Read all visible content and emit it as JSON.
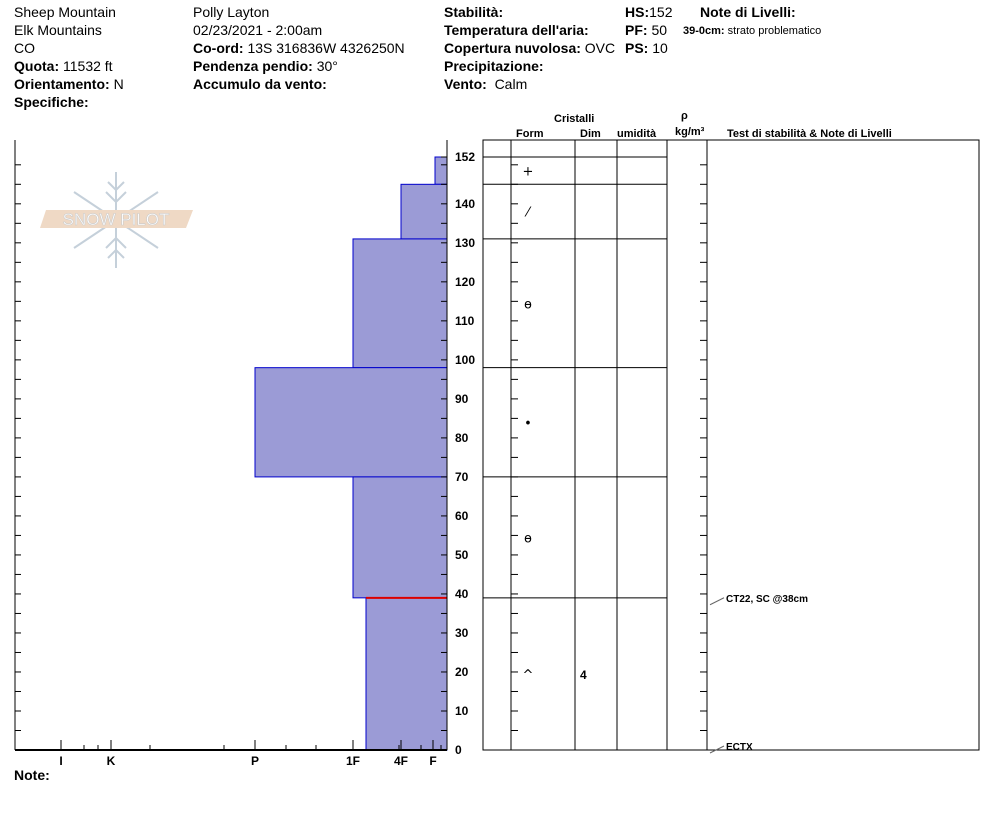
{
  "header": {
    "location": "Sheep Mountain",
    "range": "Elk Mountains",
    "state": "CO",
    "elevation_label": "Quota:",
    "elevation": "11532 ft",
    "aspect_label": "Orientamento:",
    "aspect": "N",
    "specifics_label": "Specifiche:",
    "observer": "Polly Layton",
    "datetime": "02/23/2021 - 2:00am",
    "coord_label": "Co-ord:",
    "coord": "13S 316836W 4326250N",
    "slope_label": "Pendenza pendio:",
    "slope": "30°",
    "wind_loading_label": "Accumulo da vento:",
    "stability_label": "Stabilità:",
    "air_temp_label": "Temperatura dell'aria:",
    "sky_label": "Copertura nuvolosa:",
    "sky": "OVC",
    "precip_label": "Precipitazione:",
    "wind_label": "Vento:",
    "wind": "Calm",
    "hs_label": "HS:",
    "hs": "152",
    "pf_label": "PF:",
    "pf": "50",
    "ps_label": "PS:",
    "ps": "10",
    "layer_notes_label": "Note di Livelli:",
    "layer_note_range": "39-0cm:",
    "layer_note_text": "strato problematico"
  },
  "logo": {
    "text": "SNOW PILOT"
  },
  "note_label": "Note:",
  "table_headers": {
    "crystals": "Cristalli",
    "form": "Form",
    "size": "Dim",
    "moisture": "umidità",
    "rho": "ρ",
    "density_unit": "kg/m³",
    "tests": "Test di stabilità & Note di Livelli"
  },
  "stability_tests": [
    {
      "label": "CT22, SC @38cm",
      "depth_cm": 38
    },
    {
      "label": "ECTX",
      "depth_cm": 0
    }
  ],
  "colors": {
    "layer_fill": "#9b9bd6",
    "layer_stroke": "#0000cc",
    "problem_layer": "#dd0000"
  },
  "chart_data": {
    "type": "bar",
    "title": "",
    "xlabel": "",
    "ylabel": "",
    "ylim": [
      0,
      152
    ],
    "y_ticks": [
      "0",
      "10",
      "20",
      "30",
      "40",
      "50",
      "60",
      "70",
      "80",
      "90",
      "100",
      "110",
      "120",
      "130",
      "140",
      "152"
    ],
    "hardness_ticks": [
      "I",
      "K",
      "P",
      "1F",
      "4F",
      "F"
    ],
    "layers": [
      {
        "top": 152,
        "bottom": 145,
        "hardness": "F+",
        "form": "+",
        "size": ""
      },
      {
        "top": 145,
        "bottom": 131,
        "hardness": "4F",
        "form": "⁄",
        "size": ""
      },
      {
        "top": 131,
        "bottom": 98,
        "hardness": "1F",
        "form": "ɵ",
        "size": ""
      },
      {
        "top": 98,
        "bottom": 70,
        "hardness": "P",
        "form": "•",
        "size": ""
      },
      {
        "top": 70,
        "bottom": 39,
        "hardness": "1F",
        "form": "ɵ",
        "size": ""
      },
      {
        "top": 39,
        "bottom": 0,
        "hardness": "1F-",
        "form": "^",
        "size": "4"
      }
    ],
    "problem_layer_cm": 39
  }
}
